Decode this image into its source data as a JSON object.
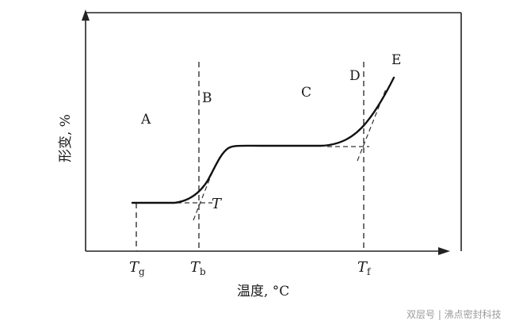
{
  "diagram": {
    "y_axis_label": "形变, %",
    "x_axis_label": "温度, °C",
    "regions": {
      "a": "A",
      "b": "B",
      "c": "C",
      "d": "D",
      "e": "E"
    },
    "point_label": "T",
    "ticks": {
      "tg_main": "T",
      "tg_sub": "g",
      "tb_main": "T",
      "tb_sub": "b",
      "tf_main": "T",
      "tf_sub": "f"
    },
    "colors": {
      "curve": "#111111",
      "axis": "#222222",
      "dashed": "#333333"
    }
  },
  "watermark": "双层号 | 沸点密封科技"
}
